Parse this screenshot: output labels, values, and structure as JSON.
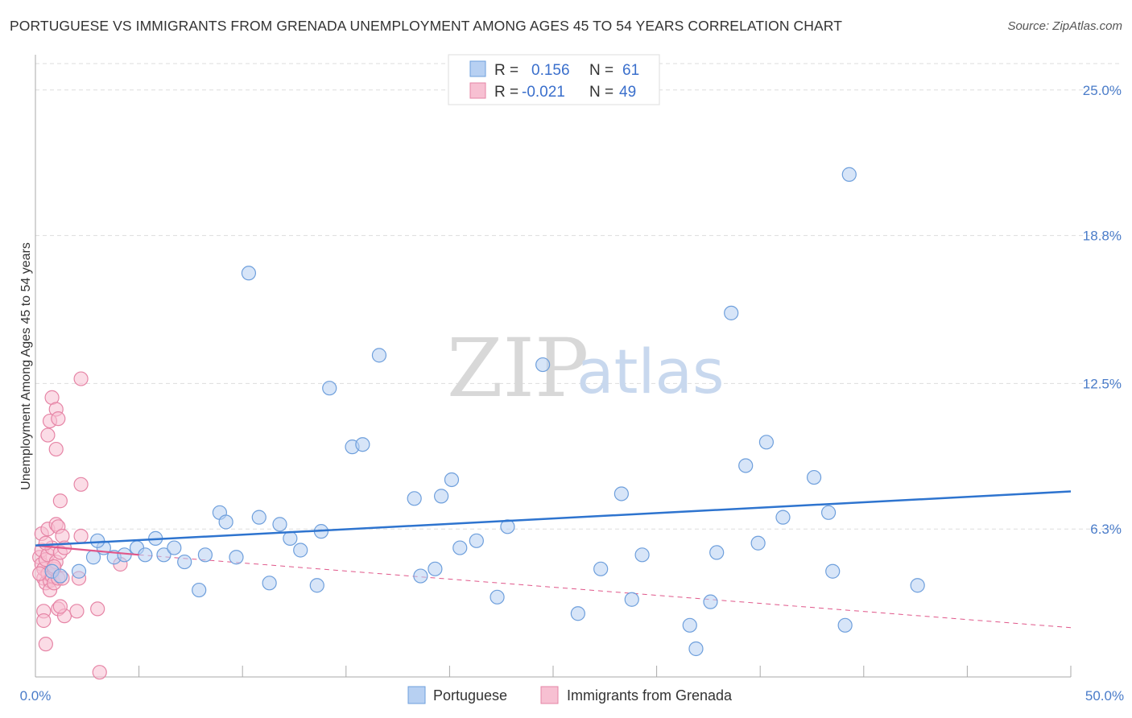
{
  "header": {
    "title": "PORTUGUESE VS IMMIGRANTS FROM GRENADA UNEMPLOYMENT AMONG AGES 45 TO 54 YEARS CORRELATION CHART",
    "source": "Source: ZipAtlas.com"
  },
  "watermark": {
    "zip": "ZIP",
    "atlas": "atlas"
  },
  "colors": {
    "blue_fill": "#b7d0f2",
    "blue_stroke": "#6e9fdc",
    "blue_line": "#2e74cf",
    "pink_fill": "#f7c0d2",
    "pink_stroke": "#e685a6",
    "pink_line": "#e0578a",
    "tick_label": "#4a7cc9",
    "grid": "#dddddd"
  },
  "legend": {
    "rows": [
      {
        "r_label": "R =",
        "r_value": "0.156",
        "n_label": "N =",
        "n_value": "61"
      },
      {
        "r_label": "R =",
        "r_value": "-0.021",
        "n_label": "N =",
        "n_value": "49"
      }
    ]
  },
  "chart_data": {
    "type": "scatter",
    "title": "PORTUGUESE VS IMMIGRANTS FROM GRENADA UNEMPLOYMENT AMONG AGES 45 TO 54 YEARS CORRELATION CHART",
    "xlabel": "",
    "ylabel": "Unemployment Among Ages 45 to 54 years",
    "xlim": [
      0,
      50
    ],
    "ylim": [
      0,
      26.5
    ],
    "x_tick_labels": [
      "0.0%",
      "50.0%"
    ],
    "y_ticks": [
      6.3,
      12.5,
      18.8,
      25.0
    ],
    "y_tick_labels": [
      "6.3%",
      "12.5%",
      "18.8%",
      "25.0%"
    ],
    "grid": true,
    "legend_position": "top-center",
    "series": [
      {
        "name": "Portuguese",
        "color": "#b7d0f2",
        "trend": {
          "x": [
            0,
            50
          ],
          "y": [
            5.6,
            7.9
          ],
          "style": "solid"
        },
        "points": [
          [
            0.8,
            4.5
          ],
          [
            1.2,
            4.3
          ],
          [
            2.1,
            4.5
          ],
          [
            2.8,
            5.1
          ],
          [
            3.3,
            5.5
          ],
          [
            3.8,
            5.1
          ],
          [
            4.3,
            5.2
          ],
          [
            4.9,
            5.5
          ],
          [
            5.3,
            5.2
          ],
          [
            5.8,
            5.9
          ],
          [
            6.2,
            5.2
          ],
          [
            6.7,
            5.5
          ],
          [
            7.2,
            4.9
          ],
          [
            7.9,
            3.7
          ],
          [
            8.2,
            5.2
          ],
          [
            8.9,
            7.0
          ],
          [
            9.2,
            6.6
          ],
          [
            9.7,
            5.1
          ],
          [
            10.3,
            17.2
          ],
          [
            10.8,
            6.8
          ],
          [
            11.3,
            4.0
          ],
          [
            11.8,
            6.5
          ],
          [
            12.3,
            5.9
          ],
          [
            12.8,
            5.4
          ],
          [
            13.6,
            3.9
          ],
          [
            13.8,
            6.2
          ],
          [
            14.2,
            12.3
          ],
          [
            15.3,
            9.8
          ],
          [
            15.8,
            9.9
          ],
          [
            16.6,
            13.7
          ],
          [
            18.3,
            7.6
          ],
          [
            18.6,
            4.3
          ],
          [
            19.3,
            4.6
          ],
          [
            19.6,
            7.7
          ],
          [
            20.1,
            8.4
          ],
          [
            21.3,
            5.8
          ],
          [
            22.3,
            3.4
          ],
          [
            22.8,
            6.4
          ],
          [
            24.5,
            13.3
          ],
          [
            26.2,
            2.7
          ],
          [
            27.3,
            4.6
          ],
          [
            28.3,
            7.8
          ],
          [
            28.8,
            3.3
          ],
          [
            29.3,
            5.2
          ],
          [
            31.6,
            2.2
          ],
          [
            31.9,
            1.2
          ],
          [
            32.6,
            3.2
          ],
          [
            32.9,
            5.3
          ],
          [
            33.6,
            15.5
          ],
          [
            34.3,
            9.0
          ],
          [
            34.9,
            5.7
          ],
          [
            35.3,
            10.0
          ],
          [
            36.1,
            6.8
          ],
          [
            37.6,
            8.5
          ],
          [
            38.3,
            7.0
          ],
          [
            38.5,
            4.5
          ],
          [
            39.1,
            2.2
          ],
          [
            39.3,
            21.4
          ],
          [
            42.6,
            3.9
          ],
          [
            3.0,
            5.8
          ],
          [
            20.5,
            5.5
          ]
        ]
      },
      {
        "name": "Immigrants from Grenada",
        "color": "#f7c0d2",
        "trend": {
          "x": [
            0,
            5
          ],
          "y": [
            5.6,
            5.2
          ],
          "style": "solid",
          "dashed_x": [
            5,
            50
          ],
          "dashed_y": [
            5.2,
            2.1
          ]
        },
        "points": [
          [
            0.2,
            5.1
          ],
          [
            0.3,
            5.4
          ],
          [
            0.3,
            4.8
          ],
          [
            0.4,
            4.2
          ],
          [
            0.4,
            4.6
          ],
          [
            0.5,
            5.0
          ],
          [
            0.5,
            4.0
          ],
          [
            0.6,
            4.4
          ],
          [
            0.6,
            5.2
          ],
          [
            0.7,
            4.1
          ],
          [
            0.7,
            3.7
          ],
          [
            0.8,
            4.3
          ],
          [
            0.8,
            5.5
          ],
          [
            0.9,
            4.6
          ],
          [
            0.9,
            4.0
          ],
          [
            1.0,
            4.9
          ],
          [
            1.1,
            4.2
          ],
          [
            1.2,
            5.3
          ],
          [
            0.3,
            6.1
          ],
          [
            0.6,
            6.3
          ],
          [
            1.0,
            6.5
          ],
          [
            1.1,
            6.4
          ],
          [
            1.2,
            7.5
          ],
          [
            1.3,
            6.0
          ],
          [
            1.4,
            5.5
          ],
          [
            2.2,
            12.7
          ],
          [
            0.8,
            11.9
          ],
          [
            1.0,
            11.4
          ],
          [
            0.7,
            10.9
          ],
          [
            1.1,
            11.0
          ],
          [
            0.6,
            10.3
          ],
          [
            1.0,
            9.7
          ],
          [
            2.2,
            8.2
          ],
          [
            2.2,
            6.0
          ],
          [
            0.4,
            2.8
          ],
          [
            0.4,
            2.4
          ],
          [
            1.1,
            2.9
          ],
          [
            1.4,
            2.6
          ],
          [
            2.0,
            2.8
          ],
          [
            3.0,
            2.9
          ],
          [
            1.2,
            3.0
          ],
          [
            0.5,
            1.4
          ],
          [
            3.1,
            0.2
          ],
          [
            4.1,
            4.8
          ],
          [
            2.1,
            4.2
          ],
          [
            0.2,
            4.4
          ],
          [
            0.9,
            4.7
          ],
          [
            1.3,
            4.2
          ],
          [
            0.5,
            5.7
          ]
        ]
      }
    ]
  },
  "bottom_legend": [
    "Portuguese",
    "Immigrants from Grenada"
  ]
}
